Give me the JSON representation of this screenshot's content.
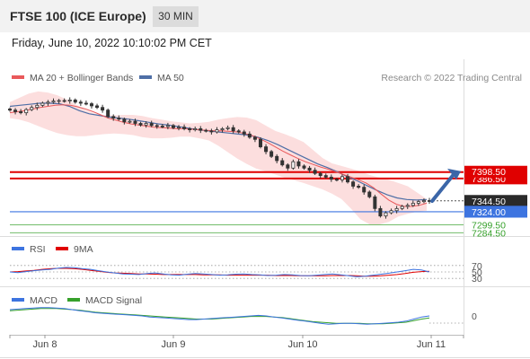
{
  "header": {
    "title": "FTSE 100 (ICE Europe)",
    "timeframe": "30 MIN",
    "datetime": "Friday, June 10, 2022 10:10:02 PM CET"
  },
  "copyright": "Research © 2022 Trading Central",
  "colors": {
    "ma20": "#e9595b",
    "bollinger": "#fbd3d3",
    "ma50": "#4f6fa6",
    "resistance": "#e00000",
    "current": "#3d74e0",
    "support": "#36a12b",
    "rsi": "#3d74e0",
    "rsi_ma": "#e00000",
    "macd": "#3d74e0",
    "macd_signal": "#36a12b",
    "arrow": "#3b66a8"
  },
  "chart_data": [
    {
      "type": "candlestick",
      "legend": [
        "MA 20 + Bollinger Bands",
        "MA 50"
      ],
      "x_labels": [
        "Jun 8",
        "Jun 9",
        "Jun 10",
        "Jun 11"
      ],
      "ylim": [
        7280,
        7560
      ],
      "price_labels": [
        {
          "text": "7398.50",
          "value": 7398.5,
          "kind": "resistance"
        },
        {
          "text": "7386.50",
          "value": 7386.5,
          "kind": "resistance"
        },
        {
          "text": "7344.50",
          "value": 7344.5,
          "kind": "last"
        },
        {
          "text": "7324.00",
          "value": 7324.0,
          "kind": "current"
        },
        {
          "text": "7299.50",
          "value": 7299.5,
          "kind": "support"
        },
        {
          "text": "7284.50",
          "value": 7284.5,
          "kind": "support"
        }
      ],
      "closes": [
        7515,
        7512,
        7510,
        7516,
        7520,
        7524,
        7528,
        7530,
        7532,
        7533,
        7532,
        7534,
        7530,
        7528,
        7527,
        7523,
        7520,
        7515,
        7503,
        7500,
        7498,
        7493,
        7494,
        7490,
        7487,
        7490,
        7486,
        7485,
        7484,
        7486,
        7482,
        7483,
        7480,
        7478,
        7480,
        7477,
        7476,
        7474,
        7478,
        7480,
        7482,
        7476,
        7474,
        7470,
        7464,
        7460,
        7446,
        7437,
        7428,
        7420,
        7412,
        7406,
        7418,
        7410,
        7406,
        7402,
        7396,
        7392,
        7389,
        7385,
        7384,
        7390,
        7380,
        7372,
        7370,
        7361,
        7352,
        7330,
        7316,
        7322,
        7326,
        7330,
        7334,
        7336,
        7340,
        7343,
        7345,
        7344
      ],
      "ma20": [
        7510,
        7512,
        7514,
        7517,
        7520,
        7522,
        7524,
        7525,
        7524,
        7521,
        7517,
        7512,
        7506,
        7500,
        7496,
        7492,
        7489,
        7487,
        7485,
        7483,
        7482,
        7481,
        7480,
        7480,
        7479,
        7478,
        7477,
        7476,
        7476,
        7475,
        7474,
        7471,
        7467,
        7461,
        7454,
        7446,
        7438,
        7431,
        7424,
        7418,
        7413,
        7408,
        7404,
        7399,
        7394,
        7389,
        7384,
        7378,
        7369,
        7357,
        7346,
        7338,
        7334,
        7334,
        7336,
        7340
      ],
      "bb_upper": [
        7530,
        7538,
        7546,
        7550,
        7548,
        7543,
        7535,
        7525,
        7515,
        7508,
        7505,
        7505,
        7506,
        7506,
        7504,
        7500,
        7497,
        7494,
        7492,
        7490,
        7491,
        7493,
        7497,
        7500,
        7502,
        7501,
        7496,
        7486,
        7476,
        7470,
        7463,
        7455,
        7440,
        7425,
        7415,
        7410,
        7405,
        7400,
        7393,
        7388,
        7384,
        7378,
        7372,
        7360,
        7348
      ],
      "bb_lower": [
        7500,
        7497,
        7492,
        7485,
        7478,
        7472,
        7468,
        7466,
        7466,
        7468,
        7470,
        7471,
        7470,
        7468,
        7464,
        7462,
        7462,
        7463,
        7465,
        7465,
        7462,
        7458,
        7448,
        7436,
        7424,
        7414,
        7405,
        7400,
        7394,
        7388,
        7383,
        7378,
        7372,
        7366,
        7358,
        7348,
        7330,
        7310,
        7300,
        7300,
        7305,
        7315,
        7320,
        7324,
        7326
      ],
      "ma50": [
        7522,
        7524,
        7526,
        7528,
        7528,
        7527,
        7522,
        7514,
        7508,
        7505,
        7502,
        7500,
        7498,
        7495,
        7492,
        7489,
        7487,
        7484,
        7481,
        7478,
        7476,
        7474,
        7472,
        7470,
        7468,
        7464,
        7458,
        7450,
        7441,
        7432,
        7423,
        7414,
        7407,
        7399,
        7390,
        7382,
        7373,
        7364,
        7356,
        7350,
        7347,
        7346,
        7347
      ]
    },
    {
      "type": "line",
      "legend": [
        "RSI",
        "9MA"
      ],
      "levels": [
        70,
        50,
        30
      ],
      "ylim": [
        0,
        100
      ],
      "rsi": [
        50,
        48,
        51,
        54,
        56,
        58,
        62,
        64,
        63,
        60,
        58,
        54,
        50,
        47,
        44,
        43,
        42,
        45,
        47,
        44,
        41,
        40,
        43,
        45,
        44,
        42,
        40,
        41,
        43,
        44,
        42,
        41,
        39,
        40,
        42,
        41,
        39,
        38,
        40,
        42,
        44,
        41,
        38,
        35,
        37,
        40,
        43,
        46,
        50,
        54,
        58,
        56,
        50
      ],
      "ma9": [
        50,
        51,
        53,
        55,
        58,
        60,
        61,
        61,
        60,
        58,
        55,
        52,
        49,
        47,
        46,
        45,
        44,
        44,
        43,
        42,
        42,
        42,
        42,
        42,
        41,
        41,
        41,
        40,
        40,
        40,
        40,
        40,
        40,
        39,
        39,
        39,
        38,
        38,
        38,
        38,
        39,
        39,
        39,
        38,
        37,
        37,
        38,
        40,
        42,
        45,
        49,
        51,
        52
      ]
    },
    {
      "type": "line",
      "legend": [
        "MACD",
        "MACD Signal"
      ],
      "levels": [
        0
      ],
      "ylim": [
        -12,
        12
      ],
      "macd": [
        6,
        6.5,
        7,
        7.5,
        8,
        8,
        7.5,
        7,
        6,
        5,
        4,
        3,
        2.5,
        2,
        1.5,
        1,
        0.5,
        0,
        -1,
        -1.5,
        -2,
        -2.5,
        -3,
        -3.5,
        -3.5,
        -3,
        -2.5,
        -2,
        -1.5,
        -1,
        -0.5,
        0,
        0.5,
        0,
        -1,
        -2,
        -3,
        -4,
        -5,
        -6,
        -7,
        -8,
        -7.5,
        -7,
        -7,
        -7.5,
        -8,
        -7.5,
        -7,
        -6.5,
        -6,
        -5,
        -3,
        -1,
        0
      ],
      "signal": [
        5,
        5.5,
        6,
        6.5,
        7,
        7,
        7,
        6.5,
        6,
        5.5,
        4.5,
        3.5,
        3,
        2.5,
        2,
        1.5,
        1,
        0.5,
        0,
        -0.5,
        -1,
        -1.5,
        -2,
        -2.5,
        -3,
        -3,
        -3,
        -2.5,
        -2,
        -1.5,
        -1,
        -0.5,
        -0.5,
        -0.5,
        -1,
        -1.5,
        -2.5,
        -3.5,
        -4.5,
        -5.5,
        -6,
        -6.5,
        -7,
        -7,
        -7,
        -7,
        -7.5,
        -7.5,
        -7.5,
        -7,
        -6.5,
        -6,
        -4.5,
        -3,
        -2
      ]
    }
  ]
}
